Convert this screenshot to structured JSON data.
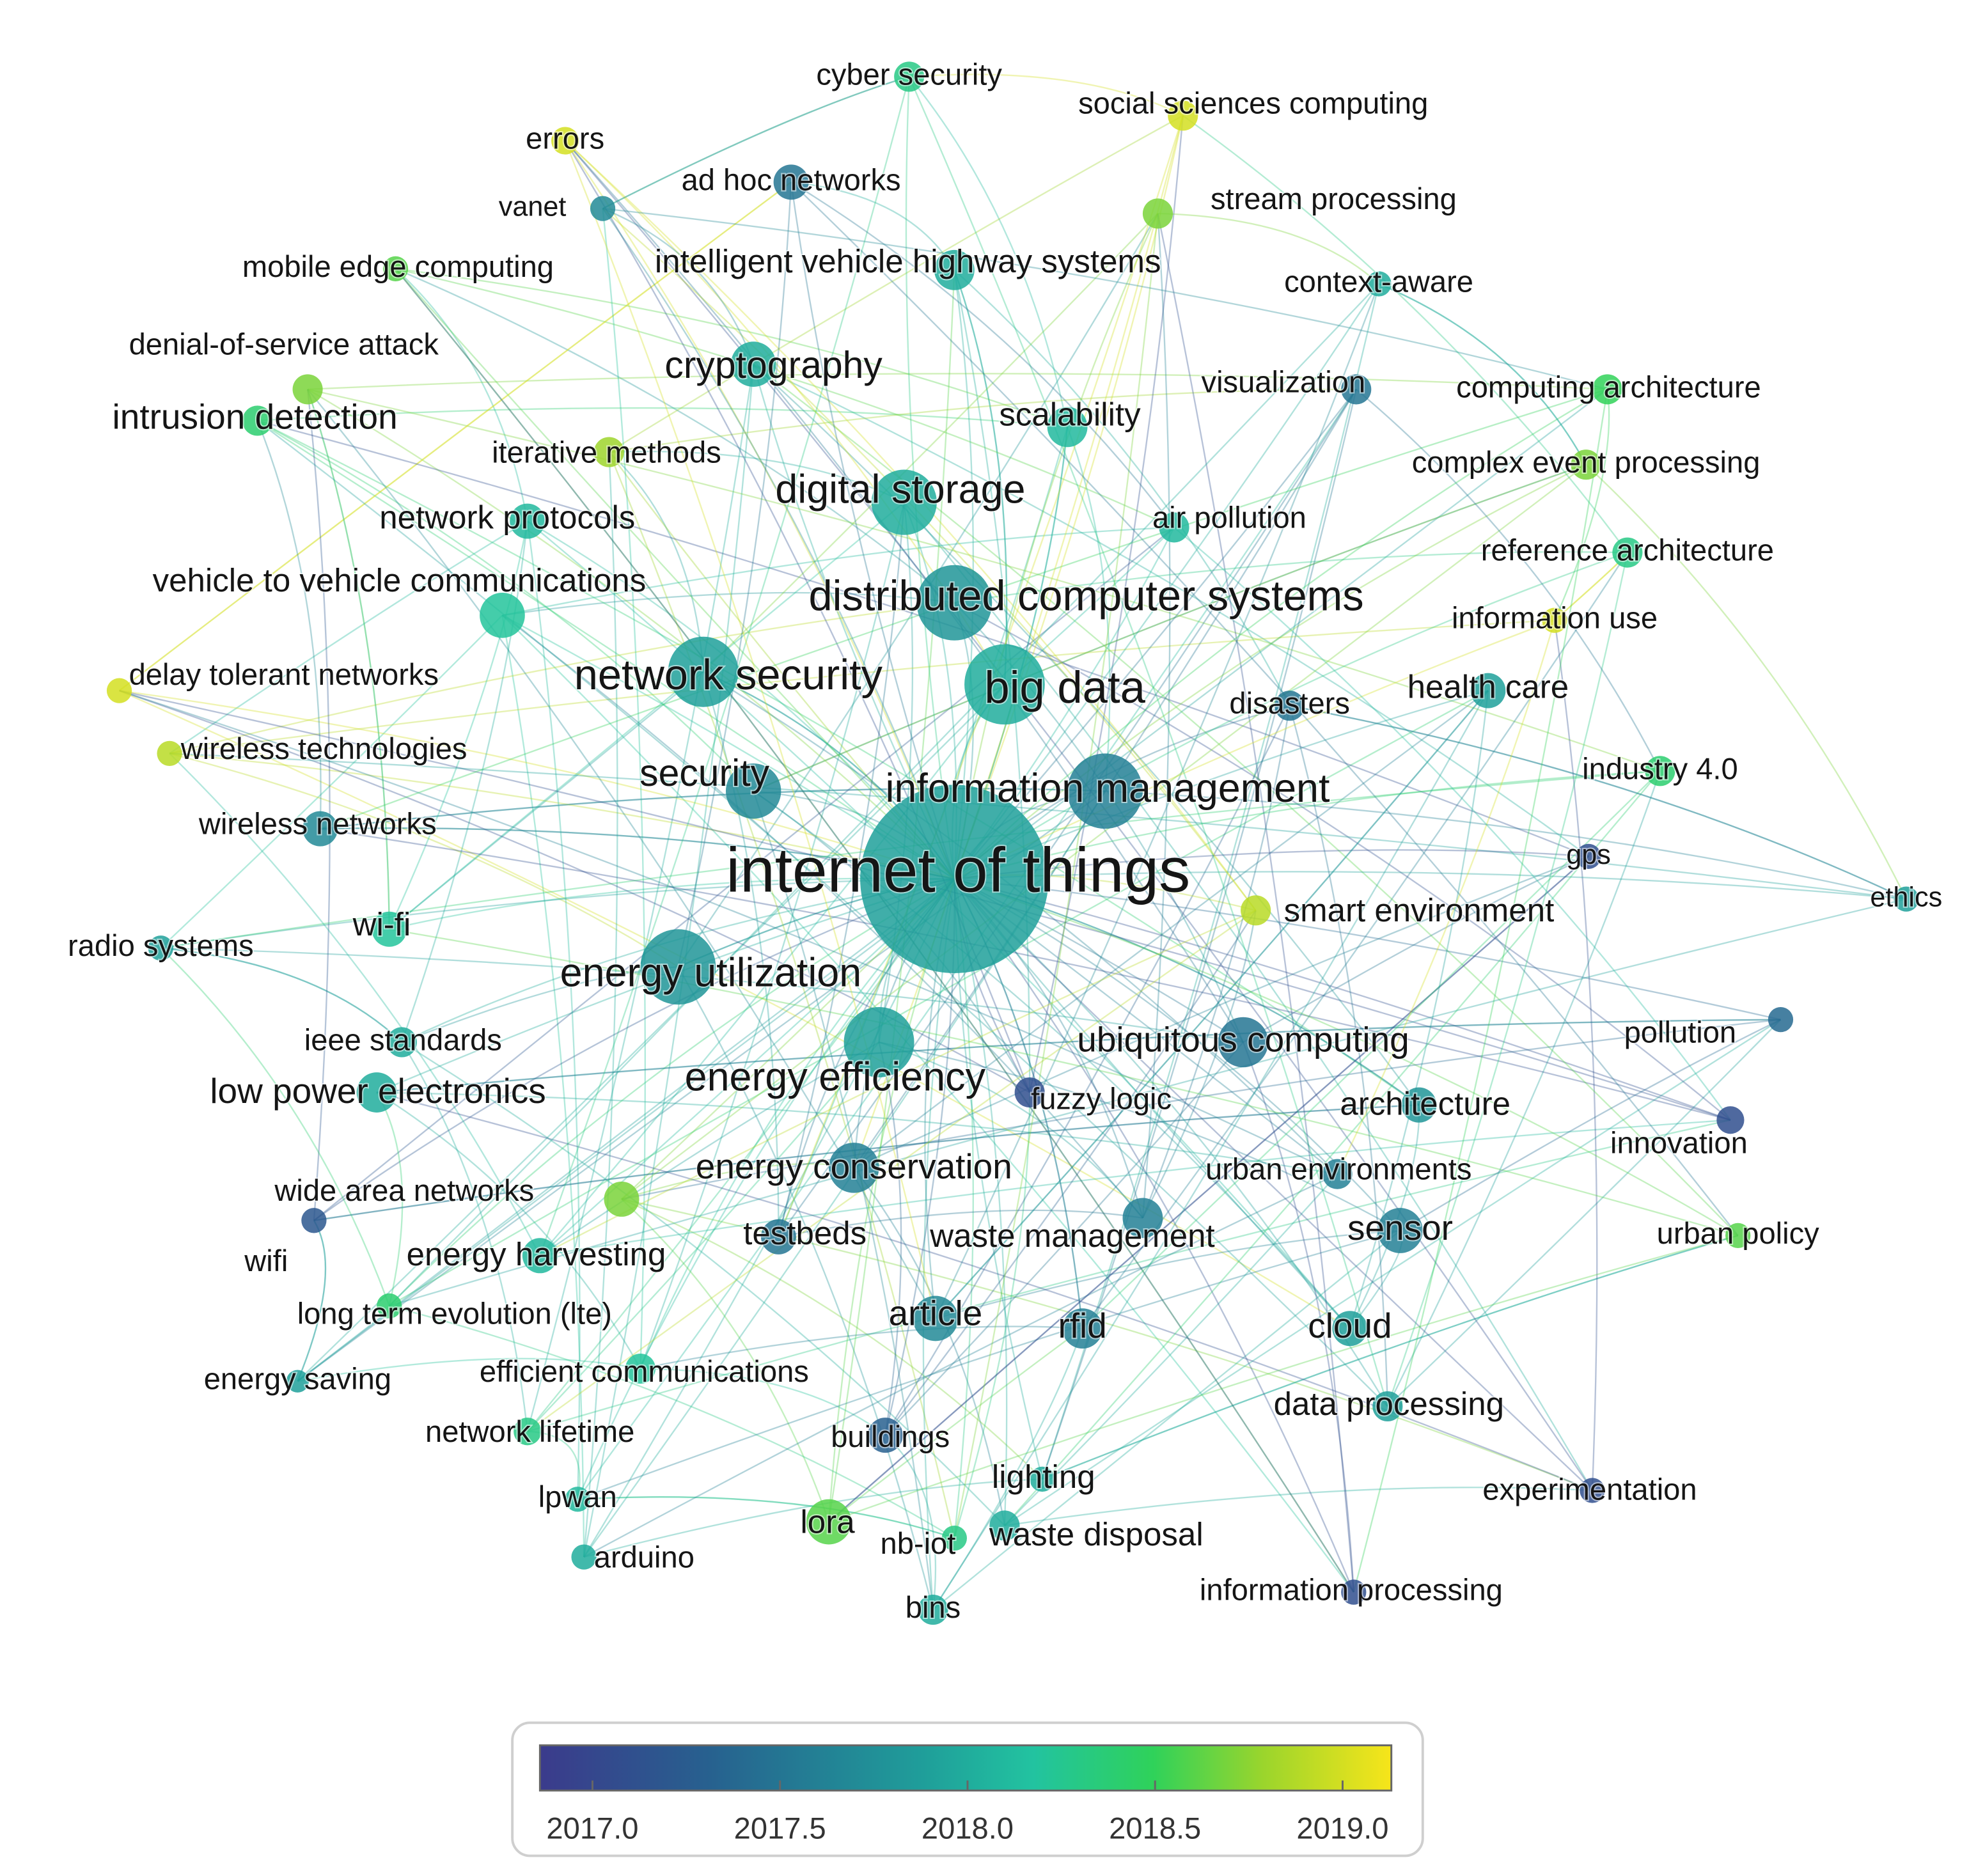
{
  "network": {
    "nodes": [
      {
        "label": "internet of things",
        "year": 2017.9
      },
      {
        "label": "distributed computer systems",
        "year": 2017.8
      },
      {
        "label": "big data",
        "year": 2018.0
      },
      {
        "label": "network security",
        "year": 2017.9
      },
      {
        "label": "information management",
        "year": 2017.6
      },
      {
        "label": "energy utilization",
        "year": 2017.8
      },
      {
        "label": "energy efficiency",
        "year": 2017.9
      },
      {
        "label": "digital storage",
        "year": 2018.0
      },
      {
        "label": "cryptography",
        "year": 2018.0
      },
      {
        "label": "security",
        "year": 2017.7
      },
      {
        "label": "ubiquitous computing",
        "year": 2017.5
      },
      {
        "label": "scalability",
        "year": 2018.1
      },
      {
        "label": "intrusion detection",
        "year": 2018.4
      },
      {
        "label": "network protocols",
        "year": 2018.1
      },
      {
        "label": "vehicle to vehicle communications",
        "year": 2018.2
      },
      {
        "label": "low power electronics",
        "year": 2018.0
      },
      {
        "label": "energy conservation",
        "year": 2017.6
      },
      {
        "label": "intelligent vehicle highway systems",
        "year": 2018.0
      },
      {
        "label": "mobile edge computing",
        "year": 2018.6
      },
      {
        "label": "denial-of-service attack",
        "year": 2018.7
      },
      {
        "label": "iterative methods",
        "year": 2018.8
      },
      {
        "label": "delay tolerant networks",
        "year": 2019.0
      },
      {
        "label": "wireless technologies",
        "year": 2018.9
      },
      {
        "label": "wireless networks",
        "year": 2017.7
      },
      {
        "label": "wi-fi",
        "year": 2018.2
      },
      {
        "label": "radio systems",
        "year": 2017.9
      },
      {
        "label": "ieee standards",
        "year": 2018.0
      },
      {
        "label": "wide area networks",
        "year": 2018.7
      },
      {
        "label": "wifi",
        "year": 2017.2
      },
      {
        "label": "energy harvesting",
        "year": 2018.1
      },
      {
        "label": "long term evolution (lte)",
        "year": 2018.4
      },
      {
        "label": "energy saving",
        "year": 2017.9
      },
      {
        "label": "efficient communications",
        "year": 2018.2
      },
      {
        "label": "network lifetime",
        "year": 2018.3
      },
      {
        "label": "lpwan",
        "year": 2018.1
      },
      {
        "label": "arduino",
        "year": 2018.0
      },
      {
        "label": "lora",
        "year": 2018.6
      },
      {
        "label": "nb-iot",
        "year": 2018.3
      },
      {
        "label": "bins",
        "year": 2018.0
      },
      {
        "label": "waste disposal",
        "year": 2018.0
      },
      {
        "label": "lighting",
        "year": 2018.0
      },
      {
        "label": "buildings",
        "year": 2017.3
      },
      {
        "label": "article",
        "year": 2017.7
      },
      {
        "label": "rfid",
        "year": 2017.6
      },
      {
        "label": "testbeds",
        "year": 2017.5
      },
      {
        "label": "waste management",
        "year": 2017.6
      },
      {
        "label": "fuzzy logic",
        "year": 2017.1
      },
      {
        "label": "architecture",
        "year": 2017.8
      },
      {
        "label": "urban environments",
        "year": 2017.6
      },
      {
        "label": "sensor",
        "year": 2017.6
      },
      {
        "label": "cloud",
        "year": 2017.9
      },
      {
        "label": "data processing",
        "year": 2017.9
      },
      {
        "label": "experimentation",
        "year": 2017.1
      },
      {
        "label": "information processing",
        "year": 2017.1
      },
      {
        "label": "innovation",
        "year": 2017.1
      },
      {
        "label": "urban policy",
        "year": 2018.6
      },
      {
        "label": "pollution",
        "year": 2017.4
      },
      {
        "label": "ethics",
        "year": 2017.9
      },
      {
        "label": "smart environment",
        "year": 2018.9
      },
      {
        "label": "gps",
        "year": 2017.1
      },
      {
        "label": "industry 4.0",
        "year": 2018.4
      },
      {
        "label": "health care",
        "year": 2017.9
      },
      {
        "label": "disasters",
        "year": 2017.5
      },
      {
        "label": "information use",
        "year": 2019.0
      },
      {
        "label": "reference architecture",
        "year": 2018.3
      },
      {
        "label": "air pollution",
        "year": 2018.1
      },
      {
        "label": "complex event processing",
        "year": 2018.7
      },
      {
        "label": "visualization",
        "year": 2017.5
      },
      {
        "label": "computing architecture",
        "year": 2018.5
      },
      {
        "label": "context-aware",
        "year": 2018.0
      },
      {
        "label": "stream processing",
        "year": 2018.7
      },
      {
        "label": "social sciences computing",
        "year": 2019.0
      },
      {
        "label": "cyber security",
        "year": 2018.3
      },
      {
        "label": "errors",
        "year": 2019.0
      },
      {
        "label": "ad hoc networks",
        "year": 2017.5
      },
      {
        "label": "vanet",
        "year": 2017.7
      }
    ]
  },
  "color_scale": {
    "xlim": [
      2016.86,
      2019.13
    ],
    "xticks": [
      {
        "value": 2017,
        "label": "2017.0"
      },
      {
        "value": 2017.5,
        "label": "2017.5"
      },
      {
        "value": 2018,
        "label": "2018.0"
      },
      {
        "value": 2018.5,
        "label": "2018.5"
      },
      {
        "value": 2019,
        "label": "2019.0"
      }
    ]
  }
}
